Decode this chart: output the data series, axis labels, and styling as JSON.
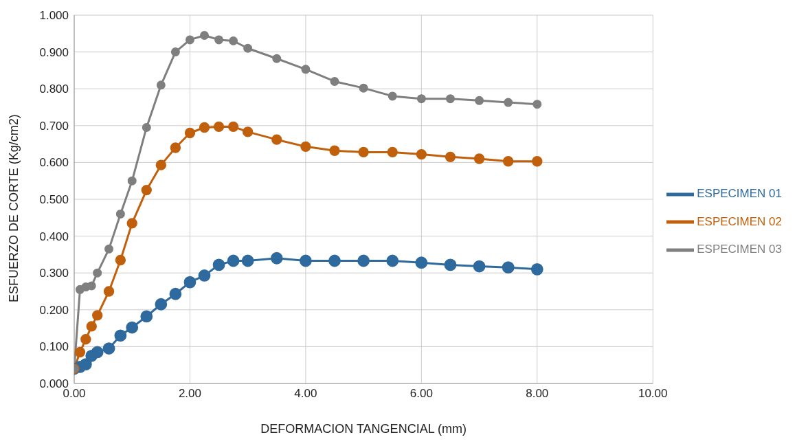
{
  "chart_data": {
    "type": "line",
    "xlabel": "DEFORMACION TANGENCIAL  (mm)",
    "ylabel": "ESFUERZO DE CORTE (Kg/cm2)",
    "x": [
      0,
      0.1,
      0.2,
      0.3,
      0.4,
      0.6,
      0.8,
      1.0,
      1.25,
      1.5,
      1.75,
      2.0,
      2.25,
      2.5,
      2.75,
      3.0,
      3.5,
      4,
      4.5,
      5,
      5.5,
      6,
      6.5,
      7,
      7.5,
      8
    ],
    "series": [
      {
        "name": "ESPECIMEN 01",
        "color": "#2e6a9e",
        "values": [
          0.04,
          0.045,
          0.052,
          0.075,
          0.085,
          0.095,
          0.13,
          0.152,
          0.182,
          0.215,
          0.243,
          0.275,
          0.293,
          0.322,
          0.333,
          0.333,
          0.34,
          0.333,
          0.333,
          0.333,
          0.333,
          0.328,
          0.322,
          0.318,
          0.315,
          0.31
        ]
      },
      {
        "name": "ESPECIMEN 02",
        "color": "#c0600c",
        "values": [
          0.04,
          0.085,
          0.12,
          0.155,
          0.185,
          0.25,
          0.335,
          0.435,
          0.525,
          0.593,
          0.64,
          0.68,
          0.695,
          0.697,
          0.697,
          0.683,
          0.662,
          0.643,
          0.632,
          0.628,
          0.628,
          0.622,
          0.615,
          0.61,
          0.603,
          0.603
        ]
      },
      {
        "name": "ESPECIMEN 03",
        "color": "#7f7f7f",
        "values": [
          0.04,
          0.255,
          0.262,
          0.265,
          0.3,
          0.365,
          0.46,
          0.55,
          0.695,
          0.81,
          0.9,
          0.933,
          0.945,
          0.933,
          0.93,
          0.91,
          0.882,
          0.853,
          0.82,
          0.802,
          0.78,
          0.773,
          0.773,
          0.768,
          0.763,
          0.758
        ]
      }
    ],
    "xlim": [
      0,
      10
    ],
    "xticks": [
      {
        "value": 0,
        "label": "0.00"
      },
      {
        "value": 2,
        "label": "2.00"
      },
      {
        "value": 4,
        "label": "4.00"
      },
      {
        "value": 6,
        "label": "6.00"
      },
      {
        "value": 8,
        "label": "8.00"
      },
      {
        "value": 10,
        "label": "10.00"
      }
    ],
    "ylim": [
      0,
      1
    ],
    "yticks": [
      {
        "value": 0,
        "label": "0.000"
      },
      {
        "value": 0.1,
        "label": "0.100"
      },
      {
        "value": 0.2,
        "label": "0.200"
      },
      {
        "value": 0.3,
        "label": "0.300"
      },
      {
        "value": 0.4,
        "label": "0.400"
      },
      {
        "value": 0.5,
        "label": "0.500"
      },
      {
        "value": 0.6,
        "label": "0.600"
      },
      {
        "value": 0.7,
        "label": "0.700"
      },
      {
        "value": 0.8,
        "label": "0.800"
      },
      {
        "value": 0.9,
        "label": "0.900"
      },
      {
        "value": 1.0,
        "label": "1.000"
      }
    ],
    "grid": true,
    "legend": "right",
    "marker": "circle",
    "line_style": "solid"
  }
}
